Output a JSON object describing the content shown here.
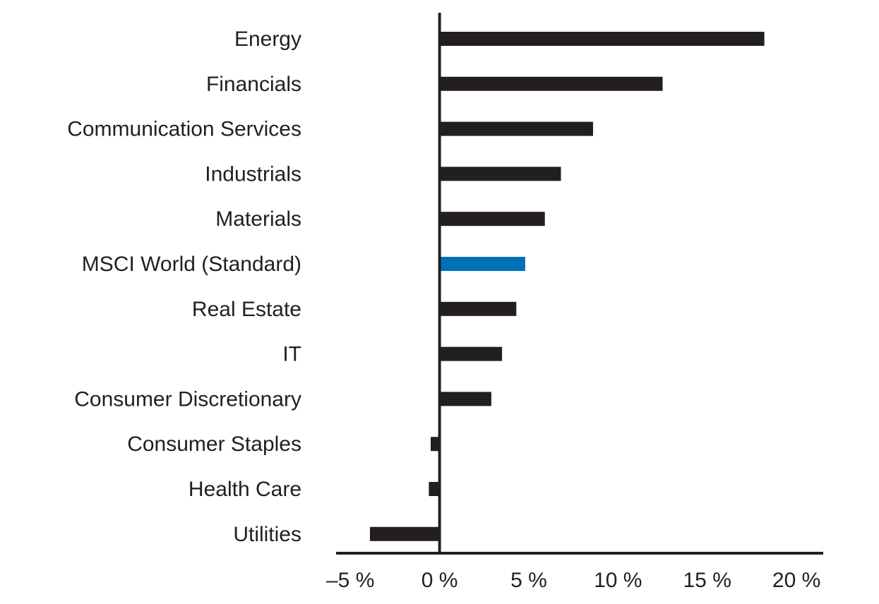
{
  "chart_data": {
    "type": "bar",
    "orientation": "horizontal",
    "categories": [
      "Energy",
      "Financials",
      "Communication Services",
      "Industrials",
      "Materials",
      "MSCI World (Standard)",
      "Real Estate",
      "IT",
      "Consumer Discretionary",
      "Consumer Staples",
      "Health Care",
      "Utilities"
    ],
    "values": [
      18.2,
      12.5,
      8.6,
      6.8,
      5.9,
      4.8,
      4.3,
      3.5,
      2.9,
      -0.5,
      -0.6,
      -3.9
    ],
    "highlight_category": "MSCI World (Standard)",
    "bar_color": "#231f20",
    "highlight_color": "#0071b9",
    "xlim": [
      -5.8,
      21.5
    ],
    "xticks": [
      -5,
      0,
      5,
      10,
      15,
      20
    ],
    "xtick_labels": [
      "–5 %",
      "0 %",
      "5 %",
      "10 %",
      "15 %",
      "20 %"
    ],
    "grid": false,
    "legend": "none"
  }
}
